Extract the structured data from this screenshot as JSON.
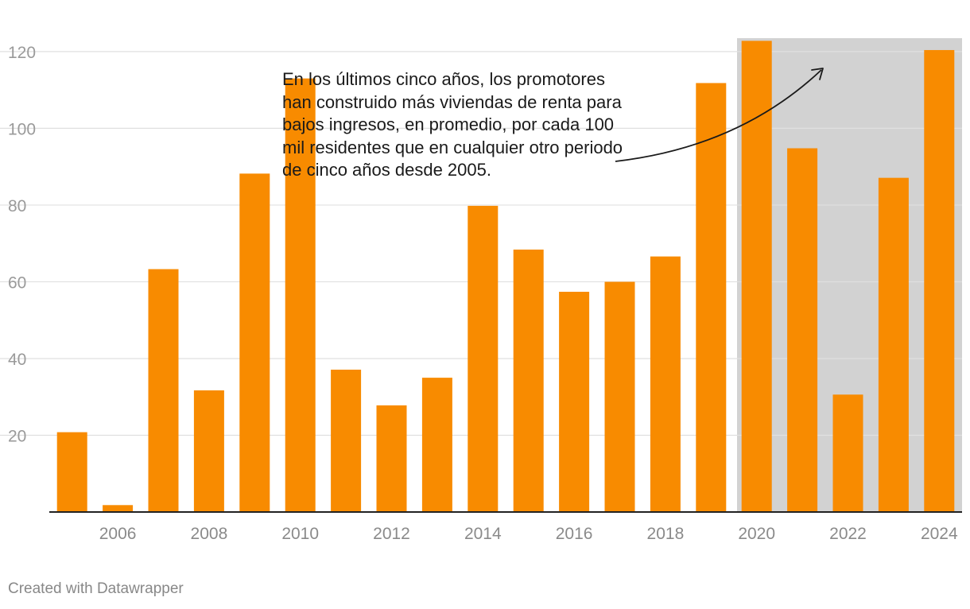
{
  "chart_data": {
    "type": "bar",
    "title": "",
    "xlabel": "",
    "ylabel": "",
    "categories": [
      "2005",
      "2006",
      "2007",
      "2008",
      "2009",
      "2010",
      "2011",
      "2012",
      "2013",
      "2014",
      "2015",
      "2016",
      "2017",
      "2018",
      "2019",
      "2020",
      "2021",
      "2022",
      "2023",
      "2024"
    ],
    "values": [
      20.8,
      1.8,
      63.3,
      31.7,
      88.2,
      113.0,
      37.1,
      27.8,
      35.0,
      79.8,
      68.4,
      57.4,
      60.0,
      66.6,
      111.8,
      122.8,
      94.8,
      30.6,
      87.1,
      120.4
    ],
    "ylim": [
      0,
      123.5
    ],
    "yticks": [
      20,
      40,
      60,
      80,
      100,
      120
    ],
    "xtick_labels": [
      "2006",
      "2008",
      "2010",
      "2012",
      "2014",
      "2016",
      "2018",
      "2020",
      "2022",
      "2024"
    ],
    "grid": true,
    "highlight_range": [
      "2020",
      "2024"
    ],
    "bar_color": "#f88b00",
    "highlight_color": "#d2d2d2",
    "annotation": "En los últimos cinco años, los promotores han construido más viviendas de renta para bajos ingresos, en promedio, por cada 100 mil residentes que en cualquier otro periodo de cinco años desde 2005."
  },
  "footer": "Created with Datawrapper"
}
